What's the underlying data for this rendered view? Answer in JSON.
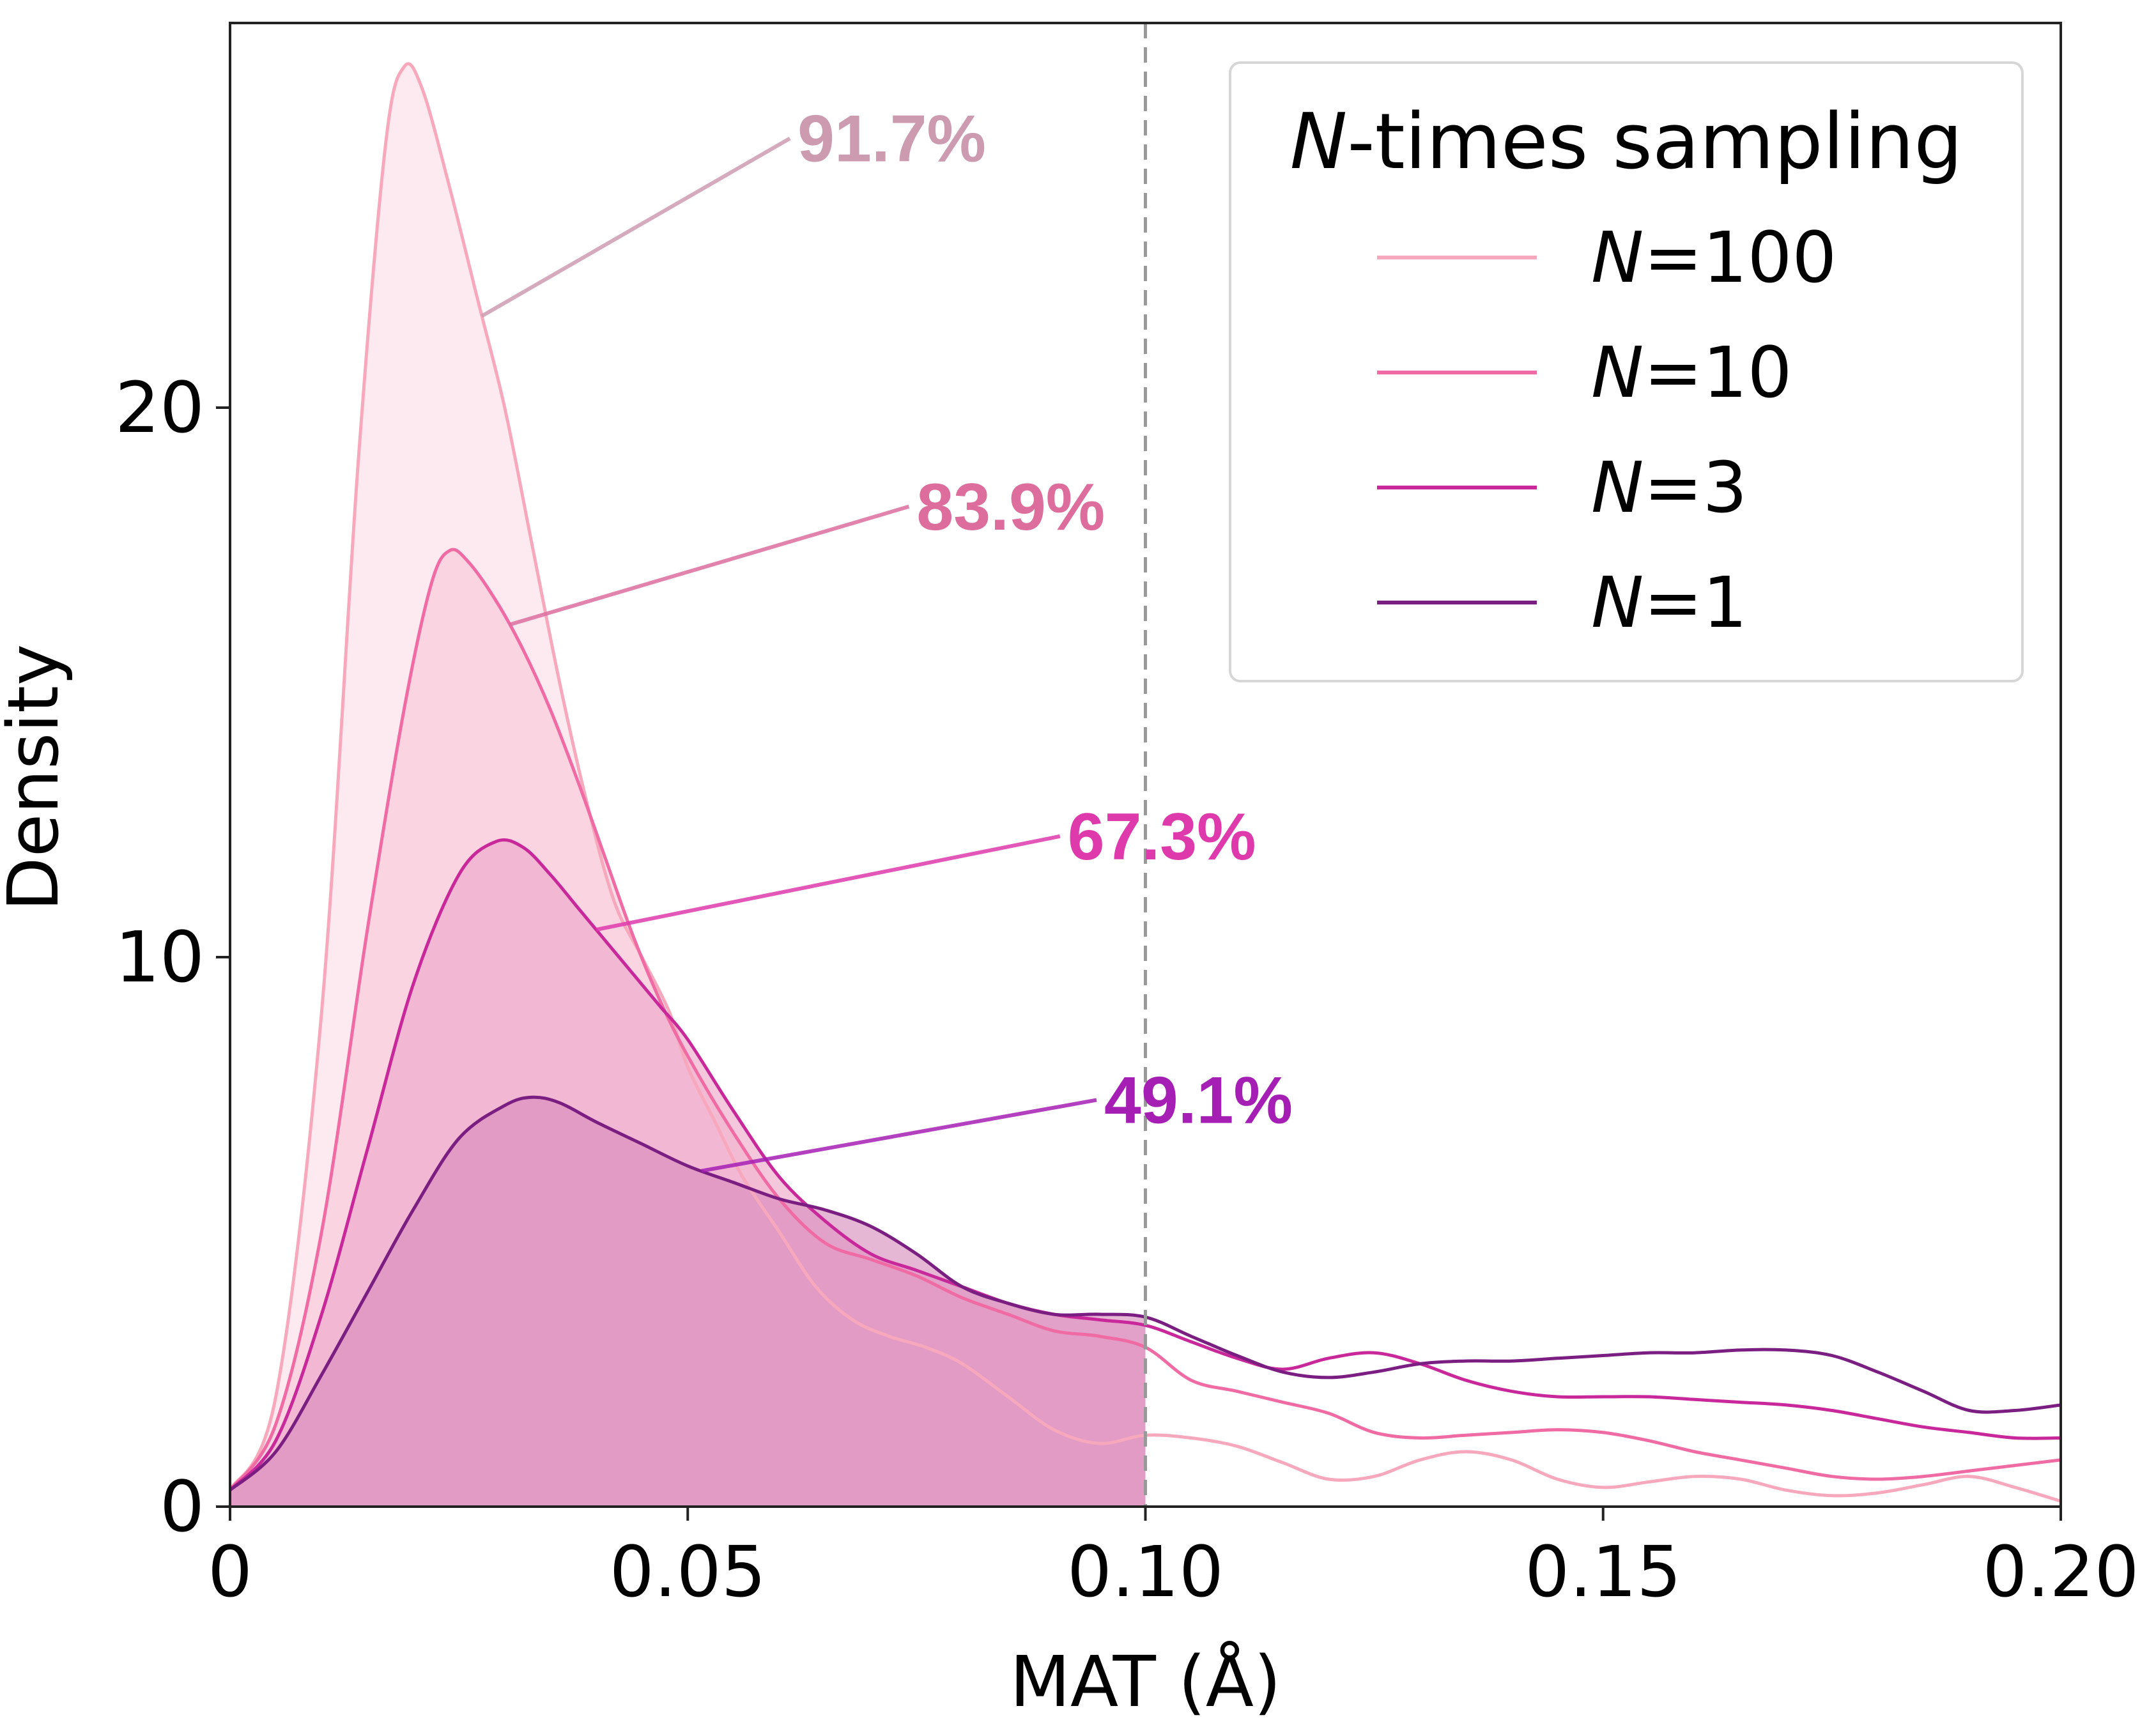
{
  "chart_data": {
    "type": "area",
    "xlabel": "MAT (Å)",
    "ylabel": "Density",
    "xlim": [
      0,
      0.2
    ],
    "ylim": [
      0,
      27
    ],
    "x_ticks": [
      "0",
      "0.05",
      "0.10",
      "0.15",
      "0.20"
    ],
    "y_ticks": [
      "0",
      "10",
      "20"
    ],
    "threshold": 0.1,
    "grid": false,
    "legend": {
      "title_italic": "N",
      "title_rest": "-times sampling",
      "position": "top-right"
    },
    "series": [
      {
        "name": "100",
        "color": "#f7a8bc",
        "fill_color": "#fcdce6",
        "annotation": "91.7%",
        "annotation_color": "#cc9bb0",
        "points": [
          [
            0,
            0.3
          ],
          [
            0.005,
            2
          ],
          [
            0.01,
            9
          ],
          [
            0.014,
            19
          ],
          [
            0.017,
            24.8
          ],
          [
            0.019,
            26.2
          ],
          [
            0.021,
            25.8
          ],
          [
            0.024,
            24
          ],
          [
            0.027,
            22
          ],
          [
            0.03,
            20
          ],
          [
            0.033,
            17.5
          ],
          [
            0.036,
            15
          ],
          [
            0.039,
            12.8
          ],
          [
            0.042,
            11
          ],
          [
            0.045,
            10
          ],
          [
            0.048,
            9
          ],
          [
            0.05,
            8
          ],
          [
            0.053,
            7
          ],
          [
            0.056,
            6
          ],
          [
            0.06,
            5
          ],
          [
            0.064,
            4
          ],
          [
            0.068,
            3.4
          ],
          [
            0.072,
            3.1
          ],
          [
            0.076,
            2.9
          ],
          [
            0.08,
            2.6
          ],
          [
            0.085,
            2
          ],
          [
            0.09,
            1.4
          ],
          [
            0.095,
            1.15
          ],
          [
            0.1,
            1.3
          ],
          [
            0.105,
            1.25
          ],
          [
            0.11,
            1.1
          ],
          [
            0.115,
            0.8
          ],
          [
            0.12,
            0.5
          ],
          [
            0.125,
            0.55
          ],
          [
            0.13,
            0.85
          ],
          [
            0.135,
            1.0
          ],
          [
            0.14,
            0.85
          ],
          [
            0.145,
            0.5
          ],
          [
            0.15,
            0.35
          ],
          [
            0.155,
            0.45
          ],
          [
            0.16,
            0.55
          ],
          [
            0.165,
            0.5
          ],
          [
            0.17,
            0.3
          ],
          [
            0.175,
            0.2
          ],
          [
            0.18,
            0.25
          ],
          [
            0.185,
            0.4
          ],
          [
            0.19,
            0.55
          ],
          [
            0.195,
            0.35
          ],
          [
            0.2,
            0.1
          ]
        ]
      },
      {
        "name": "10",
        "color": "#f06aa4",
        "fill_color": "#f8c6d8",
        "annotation": "83.9%",
        "annotation_color": "#dc6d9d",
        "points": [
          [
            0,
            0.3
          ],
          [
            0.005,
            1.5
          ],
          [
            0.01,
            5
          ],
          [
            0.015,
            10.5
          ],
          [
            0.019,
            14.5
          ],
          [
            0.022,
            16.8
          ],
          [
            0.024,
            17.4
          ],
          [
            0.026,
            17.2
          ],
          [
            0.029,
            16.5
          ],
          [
            0.032,
            15.6
          ],
          [
            0.035,
            14.5
          ],
          [
            0.038,
            13.2
          ],
          [
            0.041,
            11.8
          ],
          [
            0.044,
            10.4
          ],
          [
            0.047,
            9.2
          ],
          [
            0.05,
            8.2
          ],
          [
            0.055,
            6.8
          ],
          [
            0.06,
            5.6
          ],
          [
            0.065,
            4.8
          ],
          [
            0.07,
            4.5
          ],
          [
            0.075,
            4.2
          ],
          [
            0.08,
            3.8
          ],
          [
            0.085,
            3.5
          ],
          [
            0.09,
            3.2
          ],
          [
            0.095,
            3.1
          ],
          [
            0.1,
            2.9
          ],
          [
            0.105,
            2.3
          ],
          [
            0.11,
            2.1
          ],
          [
            0.115,
            1.9
          ],
          [
            0.12,
            1.7
          ],
          [
            0.125,
            1.35
          ],
          [
            0.13,
            1.25
          ],
          [
            0.135,
            1.3
          ],
          [
            0.14,
            1.35
          ],
          [
            0.145,
            1.4
          ],
          [
            0.15,
            1.35
          ],
          [
            0.155,
            1.2
          ],
          [
            0.16,
            1.0
          ],
          [
            0.165,
            0.85
          ],
          [
            0.17,
            0.7
          ],
          [
            0.175,
            0.55
          ],
          [
            0.18,
            0.5
          ],
          [
            0.185,
            0.55
          ],
          [
            0.19,
            0.65
          ],
          [
            0.195,
            0.75
          ],
          [
            0.2,
            0.85
          ]
        ]
      },
      {
        "name": "3",
        "color": "#c8289a",
        "fill_color": "#eea4c8",
        "annotation": "67.3%",
        "annotation_color": "#de3aac",
        "points": [
          [
            0,
            0.3
          ],
          [
            0.005,
            1.2
          ],
          [
            0.01,
            3.5
          ],
          [
            0.015,
            6.5
          ],
          [
            0.02,
            9.5
          ],
          [
            0.025,
            11.5
          ],
          [
            0.029,
            12.1
          ],
          [
            0.032,
            12
          ],
          [
            0.035,
            11.5
          ],
          [
            0.038,
            10.9
          ],
          [
            0.041,
            10.3
          ],
          [
            0.044,
            9.7
          ],
          [
            0.047,
            9.1
          ],
          [
            0.05,
            8.5
          ],
          [
            0.055,
            7.2
          ],
          [
            0.06,
            6
          ],
          [
            0.065,
            5.2
          ],
          [
            0.07,
            4.6
          ],
          [
            0.075,
            4.3
          ],
          [
            0.08,
            4
          ],
          [
            0.085,
            3.7
          ],
          [
            0.09,
            3.5
          ],
          [
            0.095,
            3.4
          ],
          [
            0.1,
            3.3
          ],
          [
            0.105,
            3.0
          ],
          [
            0.11,
            2.7
          ],
          [
            0.115,
            2.5
          ],
          [
            0.12,
            2.7
          ],
          [
            0.125,
            2.8
          ],
          [
            0.13,
            2.6
          ],
          [
            0.135,
            2.3
          ],
          [
            0.14,
            2.1
          ],
          [
            0.145,
            2.0
          ],
          [
            0.15,
            2.0
          ],
          [
            0.155,
            2.0
          ],
          [
            0.16,
            1.95
          ],
          [
            0.165,
            1.9
          ],
          [
            0.17,
            1.85
          ],
          [
            0.175,
            1.75
          ],
          [
            0.18,
            1.6
          ],
          [
            0.185,
            1.45
          ],
          [
            0.19,
            1.35
          ],
          [
            0.195,
            1.25
          ],
          [
            0.2,
            1.25
          ]
        ]
      },
      {
        "name": "1",
        "color": "#7a1e82",
        "fill_color": "#d789bc",
        "annotation": "49.1%",
        "annotation_color": "#a51fb4",
        "points": [
          [
            0,
            0.3
          ],
          [
            0.005,
            1.0
          ],
          [
            0.01,
            2.4
          ],
          [
            0.015,
            3.9
          ],
          [
            0.02,
            5.4
          ],
          [
            0.025,
            6.7
          ],
          [
            0.03,
            7.3
          ],
          [
            0.033,
            7.45
          ],
          [
            0.036,
            7.35
          ],
          [
            0.04,
            7.0
          ],
          [
            0.045,
            6.6
          ],
          [
            0.05,
            6.2
          ],
          [
            0.055,
            5.9
          ],
          [
            0.06,
            5.6
          ],
          [
            0.065,
            5.4
          ],
          [
            0.07,
            5.1
          ],
          [
            0.075,
            4.6
          ],
          [
            0.08,
            4.0
          ],
          [
            0.085,
            3.7
          ],
          [
            0.09,
            3.5
          ],
          [
            0.095,
            3.5
          ],
          [
            0.1,
            3.45
          ],
          [
            0.105,
            3.1
          ],
          [
            0.11,
            2.75
          ],
          [
            0.115,
            2.45
          ],
          [
            0.12,
            2.35
          ],
          [
            0.125,
            2.45
          ],
          [
            0.13,
            2.6
          ],
          [
            0.135,
            2.65
          ],
          [
            0.14,
            2.65
          ],
          [
            0.145,
            2.7
          ],
          [
            0.15,
            2.75
          ],
          [
            0.155,
            2.8
          ],
          [
            0.16,
            2.8
          ],
          [
            0.165,
            2.85
          ],
          [
            0.17,
            2.85
          ],
          [
            0.175,
            2.75
          ],
          [
            0.18,
            2.45
          ],
          [
            0.185,
            2.1
          ],
          [
            0.19,
            1.75
          ],
          [
            0.195,
            1.75
          ],
          [
            0.2,
            1.85
          ]
        ]
      }
    ]
  }
}
